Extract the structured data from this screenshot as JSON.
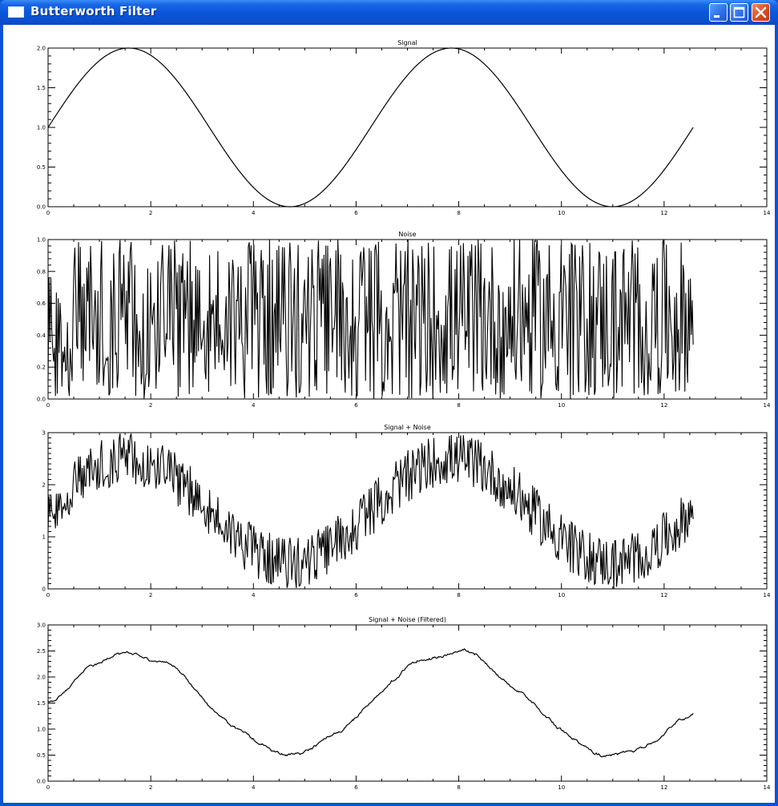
{
  "window": {
    "title": "Butterworth Filter",
    "minimize_icon": "minimize-icon",
    "maximize_icon": "maximize-icon",
    "close_icon": "close-icon",
    "titlebar_color": "#0a53d8",
    "close_color": "#d9481f"
  },
  "chart_data": [
    {
      "type": "line",
      "title": "Signal",
      "xlabel": "",
      "ylabel": "",
      "xlim": [
        0,
        14
      ],
      "ylim": [
        0,
        2
      ],
      "x_ticks": [
        "0",
        "2",
        "4",
        "6",
        "8",
        "10",
        "12",
        "14"
      ],
      "y_ticks": [
        "0.0",
        "0.5",
        "1.0",
        "1.5",
        "2.0"
      ],
      "series": [
        {
          "function": "1 + sin(x)",
          "x_range": [
            0,
            12.57
          ]
        }
      ]
    },
    {
      "type": "line",
      "title": "Noise",
      "xlabel": "",
      "ylabel": "",
      "xlim": [
        0,
        14
      ],
      "ylim": [
        0,
        1
      ],
      "x_ticks": [
        "0",
        "2",
        "4",
        "6",
        "8",
        "10",
        "12",
        "14"
      ],
      "y_ticks": [
        "0.0",
        "0.2",
        "0.4",
        "0.6",
        "0.8",
        "1.0"
      ],
      "series": [
        {
          "function": "uniform random noise",
          "x_range": [
            0,
            12.57
          ],
          "range": [
            0,
            1
          ]
        }
      ]
    },
    {
      "type": "line",
      "title": "Signal + Noise",
      "xlabel": "",
      "ylabel": "",
      "xlim": [
        0,
        14
      ],
      "ylim": [
        0,
        3
      ],
      "x_ticks": [
        "0",
        "2",
        "4",
        "6",
        "8",
        "10",
        "12",
        "14"
      ],
      "y_ticks": [
        "0",
        "1",
        "2",
        "3"
      ],
      "series": [
        {
          "function": "1 + sin(x) + noise",
          "x_range": [
            0,
            12.57
          ]
        }
      ]
    },
    {
      "type": "line",
      "title": "Signal + Noise (Filtered)",
      "xlabel": "",
      "ylabel": "",
      "xlim": [
        0,
        14
      ],
      "ylim": [
        0,
        3
      ],
      "x_ticks": [
        "0",
        "2",
        "4",
        "6",
        "8",
        "10",
        "12",
        "14"
      ],
      "y_ticks": [
        "0.0",
        "0.5",
        "1.0",
        "1.5",
        "2.0",
        "2.5",
        "3.0"
      ],
      "series": [
        {
          "function": "1.5 + sin(x) (low-pass filtered)",
          "x_range": [
            0,
            12.57
          ]
        }
      ]
    }
  ]
}
